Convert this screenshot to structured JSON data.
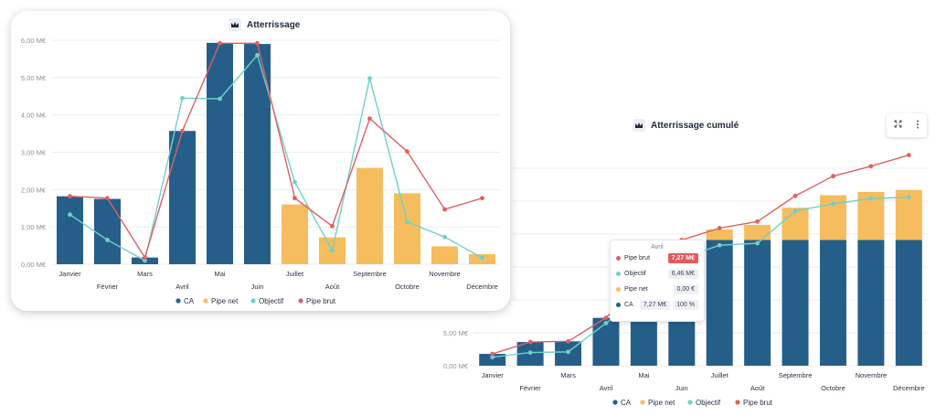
{
  "colors": {
    "ca": "#255f89",
    "pipe_net": "#f5bd5e",
    "objectif": "#6fd1c9",
    "pipe_brut": "#e0605f"
  },
  "left_card": {
    "title": "Atterrissage"
  },
  "right_card": {
    "title": "Atterrissage cumulé",
    "expand_icon": "expand-icon",
    "menu_icon": "more-vertical-icon"
  },
  "legend": [
    "CA",
    "Pipe net",
    "Objectif",
    "Pipe brut"
  ],
  "chart_data": [
    {
      "type": "bar",
      "title": "Atterrissage",
      "categories": [
        "Janvier",
        "Février",
        "Mars",
        "Avril",
        "Mai",
        "Juin",
        "Juillet",
        "Août",
        "Septembre",
        "Octobre",
        "Novembre",
        "Décembre"
      ],
      "y_ticks": [
        "0,00 M€",
        "1,00 M€",
        "2,00 M€",
        "3,00 M€",
        "4,00 M€",
        "5,00 M€",
        "6,00 M€"
      ],
      "ylim": [
        0,
        6
      ],
      "series": [
        {
          "name": "CA",
          "type": "bar",
          "values": [
            1.82,
            1.75,
            0.18,
            3.57,
            5.93,
            5.9,
            0,
            0,
            0,
            0,
            0,
            0
          ]
        },
        {
          "name": "Pipe net",
          "type": "bar",
          "values": [
            0,
            0,
            0,
            0,
            0,
            0,
            1.6,
            0.72,
            2.58,
            1.9,
            0.48,
            0.27
          ]
        },
        {
          "name": "Objectif",
          "type": "line",
          "values": [
            1.33,
            0.65,
            0.1,
            4.45,
            4.43,
            5.6,
            2.2,
            0.37,
            4.98,
            1.13,
            0.73,
            0.17
          ]
        },
        {
          "name": "Pipe brut",
          "type": "line",
          "values": [
            1.82,
            1.77,
            0.18,
            3.57,
            5.92,
            5.92,
            1.77,
            1.02,
            3.9,
            3.02,
            1.47,
            1.77
          ]
        }
      ]
    },
    {
      "type": "bar",
      "title": "Atterrissage cumulé",
      "categories": [
        "Janvier",
        "Février",
        "Mars",
        "Avril",
        "Mai",
        "Juin",
        "Juillet",
        "Août",
        "Septembre",
        "Octobre",
        "Novembre",
        "Décembre"
      ],
      "y_ticks": [
        "0,00 M€",
        "5,00 M€"
      ],
      "series": [
        {
          "name": "CA",
          "type": "bar",
          "values": [
            1.8,
            3.6,
            3.7,
            7.27,
            13.2,
            19.1,
            19.1,
            19.1,
            19.1,
            19.1,
            19.1,
            19.1
          ]
        },
        {
          "name": "Pipe net",
          "type": "bar",
          "values": [
            0,
            0,
            0,
            0,
            0,
            0,
            1.6,
            2.3,
            4.9,
            6.8,
            7.3,
            7.6
          ]
        },
        {
          "name": "Objectif",
          "type": "line",
          "values": [
            1.3,
            2.0,
            2.1,
            6.46,
            11.0,
            16.3,
            18.3,
            18.6,
            23.5,
            24.6,
            25.4,
            25.6
          ]
        },
        {
          "name": "Pipe brut",
          "type": "line",
          "values": [
            1.8,
            3.6,
            3.7,
            7.27,
            13.2,
            19.1,
            20.9,
            21.9,
            25.8,
            28.8,
            30.3,
            32.0
          ]
        }
      ],
      "tooltip": {
        "title": "Avril",
        "rows": [
          {
            "label": "Pipe brut",
            "value": "7,27 M€",
            "color": "#e0605f",
            "highlight": true
          },
          {
            "label": "Objectif",
            "value": "6,46 M€",
            "color": "#6fd1c9",
            "highlight": false
          },
          {
            "label": "Pipe net",
            "value": "0,00 €",
            "color": "#f5bd5e",
            "highlight": false
          },
          {
            "label": "CA",
            "value": "7,27 M€",
            "value2": "100 %",
            "color": "#255f89",
            "highlight": false
          }
        ]
      }
    }
  ]
}
